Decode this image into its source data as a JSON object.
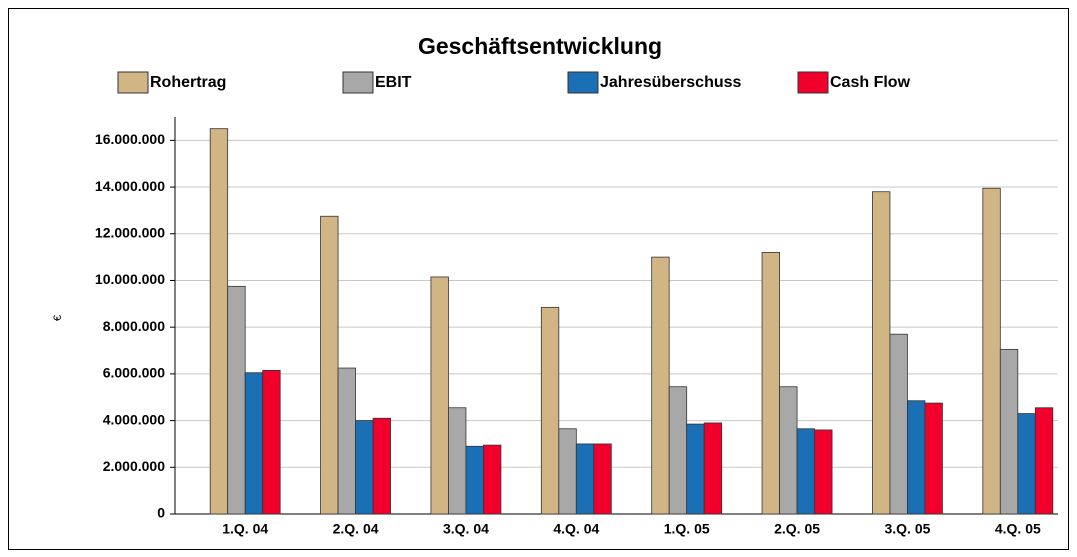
{
  "chart_data": {
    "type": "bar",
    "title": "Geschäftsentwicklung",
    "y_label": "€",
    "categories": [
      "1.Q. 04",
      "2.Q. 04",
      "3.Q. 04",
      "4.Q. 04",
      "1.Q. 05",
      "2.Q. 05",
      "3.Q. 05",
      "4.Q. 05"
    ],
    "series": [
      {
        "name": "Rohertrag",
        "color": "#d2b584",
        "values": [
          16500000,
          12750000,
          10150000,
          8850000,
          11000000,
          11200000,
          13800000,
          13950000
        ]
      },
      {
        "name": "EBIT",
        "color": "#a8a8a8",
        "values": [
          9750000,
          6250000,
          4550000,
          3650000,
          5450000,
          5450000,
          7700000,
          7050000
        ]
      },
      {
        "name": "Jahresüberschuss",
        "color": "#1a6fb5",
        "values": [
          6050000,
          4000000,
          2900000,
          3000000,
          3850000,
          3650000,
          4850000,
          4300000
        ]
      },
      {
        "name": "Cash Flow",
        "color": "#f0002a",
        "values": [
          6150000,
          4100000,
          2950000,
          3000000,
          3900000,
          3600000,
          4750000,
          4550000
        ]
      }
    ],
    "ylim": [
      0,
      17000000
    ],
    "yticks": [
      0,
      {
        "value": 2000000,
        "label": "2.000.000"
      },
      {
        "value": 4000000,
        "label": "4.000.000"
      },
      {
        "value": 6000000,
        "label": "6.000.000"
      },
      {
        "value": 8000000,
        "label": "8.000.000"
      },
      {
        "value": 10000000,
        "label": "10.000.000"
      },
      {
        "value": 12000000,
        "label": "12.000.000"
      },
      {
        "value": 14000000,
        "label": "14.000.000"
      },
      {
        "value": 16000000,
        "label": "16.000.000"
      }
    ],
    "grid": true,
    "legend": "top"
  }
}
